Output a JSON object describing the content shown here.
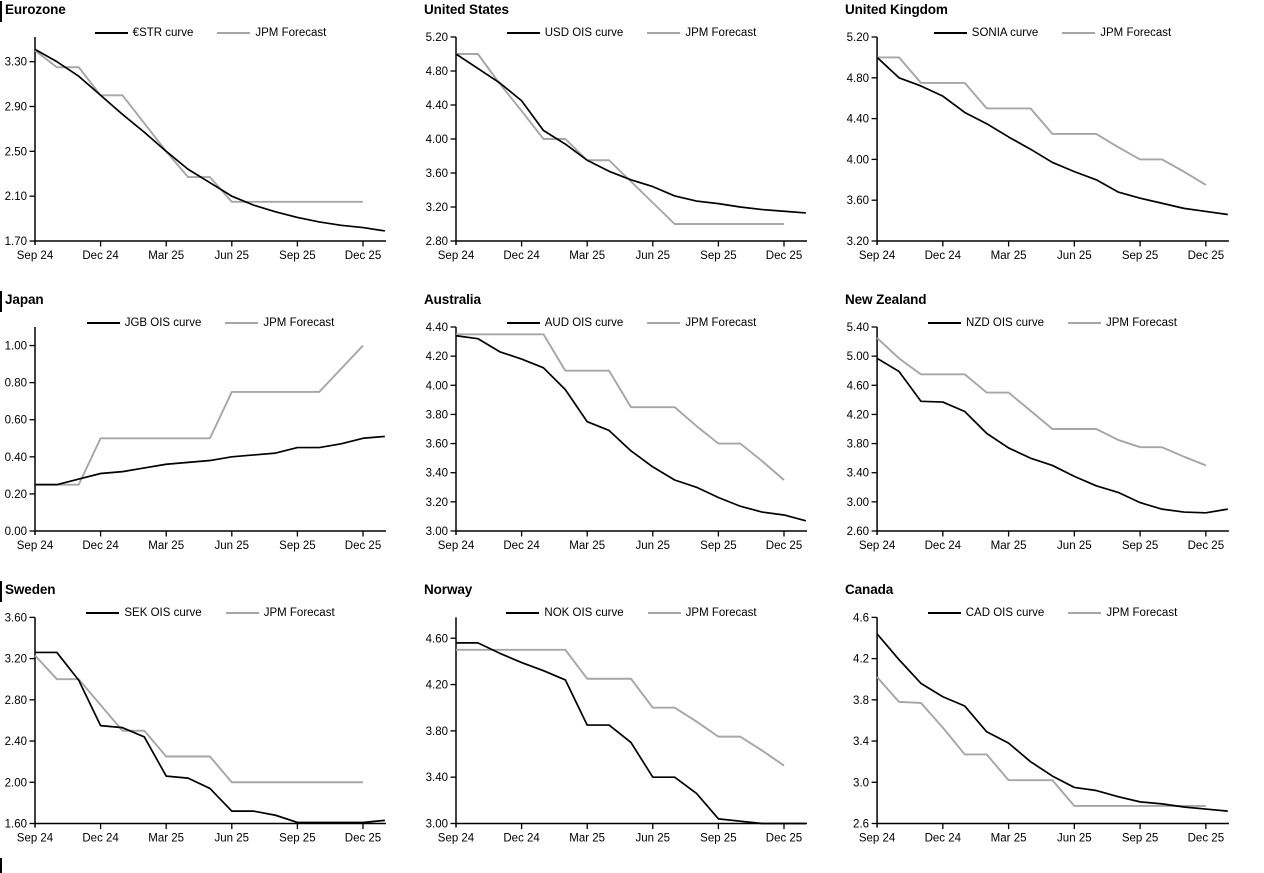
{
  "page": {
    "background": "#ffffff"
  },
  "colors": {
    "curve": "#000000",
    "forecast": "#a6a6a6",
    "axis": "#000000",
    "text": "#000000"
  },
  "x_axis_labels": [
    "Sep 24",
    "Dec 24",
    "Mar 25",
    "Jun 25",
    "Sep 25",
    "Dec 25"
  ],
  "chart_data": [
    {
      "type": "line",
      "title": "Eurozone",
      "x_resolution": "monthly",
      "grid": false,
      "legend_position": "top",
      "x_axis_labels": [
        "Sep 24",
        "Dec 24",
        "Mar 25",
        "Jun 25",
        "Sep 25",
        "Dec 25"
      ],
      "y_ticks": [
        "3.30",
        "2.90",
        "2.50",
        "2.10",
        "1.70"
      ],
      "ylim": [
        1.7,
        3.52
      ],
      "series": [
        {
          "name": "€STR curve",
          "color": "#000000",
          "values": [
            3.41,
            3.3,
            3.17,
            3.0,
            2.83,
            2.67,
            2.5,
            2.34,
            2.22,
            2.1,
            2.02,
            1.96,
            1.91,
            1.87,
            1.84,
            1.82,
            1.79
          ]
        },
        {
          "name": "JPM Forecast",
          "color": "#a6a6a6",
          "values": [
            3.4,
            3.25,
            3.25,
            3.0,
            3.0,
            2.75,
            2.5,
            2.27,
            2.27,
            2.05,
            2.05,
            2.05,
            2.05,
            2.05,
            2.05,
            2.05
          ]
        }
      ]
    },
    {
      "type": "line",
      "title": "United States",
      "x_resolution": "monthly",
      "grid": false,
      "legend_position": "top",
      "x_axis_labels": [
        "Sep 24",
        "Dec 24",
        "Mar 25",
        "Jun 25",
        "Sep 25",
        "Dec 25"
      ],
      "y_ticks": [
        "5.20",
        "4.80",
        "4.40",
        "4.00",
        "3.60",
        "3.20",
        "2.80"
      ],
      "ylim": [
        2.8,
        5.2
      ],
      "series": [
        {
          "name": "USD OIS curve",
          "color": "#000000",
          "values": [
            5.0,
            4.83,
            4.66,
            4.45,
            4.1,
            3.94,
            3.75,
            3.62,
            3.52,
            3.44,
            3.33,
            3.27,
            3.24,
            3.2,
            3.17,
            3.15,
            3.13
          ]
        },
        {
          "name": "JPM Forecast",
          "color": "#a6a6a6",
          "values": [
            5.0,
            5.0,
            4.65,
            4.33,
            4.0,
            4.0,
            3.75,
            3.75,
            3.5,
            3.25,
            3.0,
            3.0,
            3.0,
            3.0,
            3.0,
            3.0
          ]
        }
      ]
    },
    {
      "type": "line",
      "title": "United Kingdom",
      "x_resolution": "monthly",
      "grid": false,
      "legend_position": "top",
      "x_axis_labels": [
        "Sep 24",
        "Dec 24",
        "Mar 25",
        "Jun 25",
        "Sep 25",
        "Dec 25"
      ],
      "y_ticks": [
        "5.20",
        "4.80",
        "4.40",
        "4.00",
        "3.60",
        "3.20"
      ],
      "ylim": [
        3.2,
        5.2
      ],
      "series": [
        {
          "name": "SONIA curve",
          "color": "#000000",
          "values": [
            5.0,
            4.8,
            4.72,
            4.62,
            4.46,
            4.35,
            4.22,
            4.1,
            3.97,
            3.88,
            3.8,
            3.68,
            3.62,
            3.57,
            3.52,
            3.49,
            3.46
          ]
        },
        {
          "name": "JPM Forecast",
          "color": "#a6a6a6",
          "values": [
            5.0,
            5.0,
            4.75,
            4.75,
            4.75,
            4.5,
            4.5,
            4.5,
            4.25,
            4.25,
            4.25,
            4.12,
            4.0,
            4.0,
            3.88,
            3.75
          ]
        }
      ]
    },
    {
      "type": "line",
      "title": "Japan",
      "x_resolution": "monthly",
      "grid": false,
      "legend_position": "top",
      "x_axis_labels": [
        "Sep 24",
        "Dec 24",
        "Mar 25",
        "Jun 25",
        "Sep 25",
        "Dec 25"
      ],
      "y_ticks": [
        "1.00",
        "0.80",
        "0.60",
        "0.40",
        "0.20",
        "0.00"
      ],
      "ylim": [
        0.0,
        1.1
      ],
      "series": [
        {
          "name": "JGB OIS curve",
          "color": "#000000",
          "values": [
            0.25,
            0.25,
            0.28,
            0.31,
            0.32,
            0.34,
            0.36,
            0.37,
            0.38,
            0.4,
            0.41,
            0.42,
            0.45,
            0.45,
            0.47,
            0.5,
            0.51
          ]
        },
        {
          "name": "JPM Forecast",
          "color": "#a6a6a6",
          "values": [
            0.25,
            0.25,
            0.25,
            0.5,
            0.5,
            0.5,
            0.5,
            0.5,
            0.5,
            0.75,
            0.75,
            0.75,
            0.75,
            0.75,
            0.875,
            1.0
          ]
        }
      ]
    },
    {
      "type": "line",
      "title": "Australia",
      "x_resolution": "monthly",
      "grid": false,
      "legend_position": "top",
      "x_axis_labels": [
        "Sep 24",
        "Dec 24",
        "Mar 25",
        "Jun 25",
        "Sep 25",
        "Dec 25"
      ],
      "y_ticks": [
        "4.40",
        "4.20",
        "4.00",
        "3.80",
        "3.60",
        "3.40",
        "3.20",
        "3.00"
      ],
      "ylim": [
        3.0,
        4.4
      ],
      "series": [
        {
          "name": "AUD OIS curve",
          "color": "#000000",
          "values": [
            4.34,
            4.32,
            4.23,
            4.18,
            4.12,
            3.97,
            3.75,
            3.69,
            3.55,
            3.44,
            3.35,
            3.3,
            3.23,
            3.17,
            3.13,
            3.11,
            3.07
          ]
        },
        {
          "name": "JPM Forecast",
          "color": "#a6a6a6",
          "values": [
            4.35,
            4.35,
            4.35,
            4.35,
            4.35,
            4.1,
            4.1,
            4.1,
            3.85,
            3.85,
            3.85,
            3.72,
            3.6,
            3.6,
            3.48,
            3.35
          ]
        }
      ]
    },
    {
      "type": "line",
      "title": "New Zealand",
      "x_resolution": "monthly",
      "grid": false,
      "legend_position": "top",
      "x_axis_labels": [
        "Sep 24",
        "Dec 24",
        "Mar 25",
        "Jun 25",
        "Sep 25",
        "Dec 25"
      ],
      "y_ticks": [
        "5.40",
        "5.00",
        "4.60",
        "4.20",
        "3.80",
        "3.40",
        "3.00",
        "2.60"
      ],
      "ylim": [
        2.6,
        5.4
      ],
      "series": [
        {
          "name": "NZD OIS curve",
          "color": "#000000",
          "values": [
            4.97,
            4.79,
            4.38,
            4.37,
            4.24,
            3.94,
            3.74,
            3.6,
            3.5,
            3.35,
            3.22,
            3.13,
            2.99,
            2.9,
            2.86,
            2.85,
            2.9
          ]
        },
        {
          "name": "JPM Forecast",
          "color": "#a6a6a6",
          "values": [
            5.25,
            4.97,
            4.75,
            4.75,
            4.75,
            4.5,
            4.5,
            4.25,
            4.0,
            4.0,
            4.0,
            3.85,
            3.75,
            3.75,
            3.62,
            3.5
          ]
        }
      ]
    },
    {
      "type": "line",
      "title": "Sweden",
      "x_resolution": "monthly",
      "grid": false,
      "legend_position": "top",
      "x_axis_labels": [
        "Sep 24",
        "Dec 24",
        "Mar 25",
        "Jun 25",
        "Sep 25",
        "Dec 25"
      ],
      "y_ticks": [
        "3.60",
        "3.20",
        "2.80",
        "2.40",
        "2.00",
        "1.60"
      ],
      "ylim": [
        1.6,
        3.6
      ],
      "series": [
        {
          "name": "SEK OIS curve",
          "color": "#000000",
          "values": [
            3.26,
            3.26,
            2.99,
            2.55,
            2.53,
            2.44,
            2.06,
            2.04,
            1.94,
            1.72,
            1.72,
            1.68,
            1.61,
            1.61,
            1.61,
            1.61,
            1.63
          ]
        },
        {
          "name": "JPM Forecast",
          "color": "#a6a6a6",
          "values": [
            3.23,
            3.0,
            3.0,
            2.75,
            2.5,
            2.5,
            2.25,
            2.25,
            2.25,
            2.0,
            2.0,
            2.0,
            2.0,
            2.0,
            2.0,
            2.0
          ]
        }
      ]
    },
    {
      "type": "line",
      "title": "Norway",
      "x_resolution": "monthly",
      "grid": false,
      "legend_position": "top",
      "x_axis_labels": [
        "Sep 24",
        "Dec 24",
        "Mar 25",
        "Jun 25",
        "Sep 25",
        "Dec 25"
      ],
      "y_ticks": [
        "4.60",
        "4.20",
        "3.80",
        "3.40",
        "3.00"
      ],
      "ylim": [
        3.0,
        4.78
      ],
      "series": [
        {
          "name": "NOK OIS curve",
          "color": "#000000",
          "values": [
            4.56,
            4.56,
            4.47,
            4.39,
            4.32,
            4.24,
            3.85,
            3.85,
            3.7,
            3.4,
            3.4,
            3.26,
            3.04,
            3.02,
            3.0,
            3.0,
            3.0
          ]
        },
        {
          "name": "JPM Forecast",
          "color": "#a6a6a6",
          "values": [
            4.5,
            4.5,
            4.5,
            4.5,
            4.5,
            4.5,
            4.25,
            4.25,
            4.25,
            4.0,
            4.0,
            3.88,
            3.75,
            3.75,
            3.63,
            3.5
          ]
        }
      ]
    },
    {
      "type": "line",
      "title": "Canada",
      "x_resolution": "monthly",
      "grid": false,
      "legend_position": "top",
      "x_axis_labels": [
        "Sep 24",
        "Dec 24",
        "Mar 25",
        "Jun 25",
        "Sep 25",
        "Dec 25"
      ],
      "y_ticks": [
        "4.6",
        "4.2",
        "3.8",
        "3.4",
        "3.0",
        "2.6"
      ],
      "ylim": [
        2.6,
        4.6
      ],
      "series": [
        {
          "name": "CAD OIS curve",
          "color": "#000000",
          "values": [
            4.44,
            4.19,
            3.96,
            3.83,
            3.74,
            3.49,
            3.38,
            3.2,
            3.06,
            2.95,
            2.92,
            2.86,
            2.81,
            2.79,
            2.76,
            2.74,
            2.72
          ]
        },
        {
          "name": "JPM Forecast",
          "color": "#a6a6a6",
          "values": [
            4.02,
            3.78,
            3.77,
            3.53,
            3.27,
            3.27,
            3.02,
            3.02,
            3.02,
            2.77,
            2.77,
            2.77,
            2.77,
            2.77,
            2.77,
            2.77
          ]
        }
      ]
    }
  ]
}
